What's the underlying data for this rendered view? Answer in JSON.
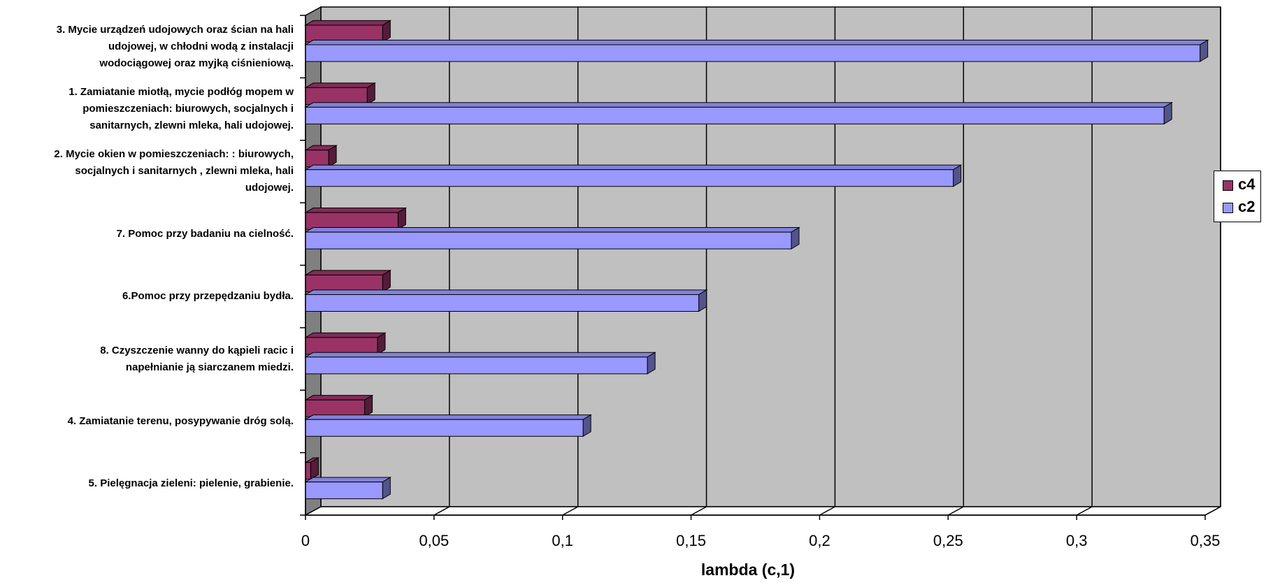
{
  "chart_data": {
    "type": "bar",
    "orientation": "horizontal",
    "style": "3d",
    "categories": [
      "3. Mycie urządzeń udojowych oraz ścian na hali udojowej, w chłodni wodą z instalacji wodociągowej oraz myjką ciśnieniową.",
      "1. Zamiatanie miotłą, mycie podłóg mopem w pomieszczeniach: biurowych, socjalnych i sanitarnych, zlewni mleka, hali udojowej.",
      "2. Mycie okien w pomieszczeniach: : biurowych, socjalnych i sanitarnych , zlewni mleka, hali udojowej.",
      "7. Pomoc przy badaniu na cielność.",
      "6.Pomoc przy przepędzaniu bydła.",
      "8. Czyszczenie wanny do kąpieli racic i napełnianie ją siarczanem miedzi.",
      "4. Zamiatanie terenu, posypywanie dróg solą.",
      "5. Pielęgnacja zieleni: pielenie, grabienie."
    ],
    "category_lines": [
      [
        "3. Mycie urządzeń udojowych oraz ścian na hali",
        "udojowej, w chłodni wodą z instalacji",
        "wodociągowej oraz myjką ciśnieniową."
      ],
      [
        "1. Zamiatanie miotłą, mycie podłóg mopem w",
        "pomieszczeniach: biurowych, socjalnych i",
        "sanitarnych, zlewni mleka, hali udojowej."
      ],
      [
        "2. Mycie okien w pomieszczeniach: : biurowych,",
        "socjalnych i sanitarnych , zlewni mleka, hali",
        "udojowej."
      ],
      [
        "7. Pomoc przy badaniu na cielność."
      ],
      [
        "6.Pomoc przy przepędzaniu bydła."
      ],
      [
        "8. Czyszczenie wanny do kąpieli racic i",
        "napełnianie ją siarczanem miedzi."
      ],
      [
        "4. Zamiatanie terenu, posypywanie dróg solą."
      ],
      [
        "5. Pielęgnacja zieleni: pielenie, grabienie."
      ]
    ],
    "series": [
      {
        "name": "c4",
        "color": "#993366",
        "values": [
          0.03,
          0.024,
          0.009,
          0.036,
          0.03,
          0.028,
          0.023,
          0.002
        ]
      },
      {
        "name": "c2",
        "color": "#9999ff",
        "values": [
          0.348,
          0.334,
          0.252,
          0.189,
          0.153,
          0.133,
          0.108,
          0.03
        ]
      }
    ],
    "xlabel": "lambda (c,1)",
    "ylabel": "",
    "title": "",
    "xlim": [
      0,
      0.35
    ],
    "x_ticks": [
      "0",
      "0,05",
      "0,1",
      "0,15",
      "0,2",
      "0,25",
      "0,3",
      "0,35"
    ],
    "grid": "vertical",
    "legend_position": "right",
    "colors": {
      "plot_wall": "#c0c0c0",
      "floor": "#ffffff",
      "gridline": "#000000"
    }
  }
}
